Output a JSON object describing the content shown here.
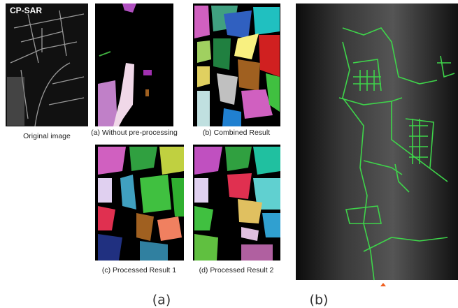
{
  "panel_a": {
    "original": {
      "overlay": "CP-SAR",
      "caption": "Original image"
    },
    "results": [
      {
        "caption": "(a) Without pre-processing"
      },
      {
        "caption": "(b) Combined Result"
      },
      {
        "caption": "(c) Processed Result 1"
      },
      {
        "caption": "(d) Processed Result 2"
      }
    ],
    "label": "(a)"
  },
  "panel_b": {
    "label": "(b)"
  }
}
